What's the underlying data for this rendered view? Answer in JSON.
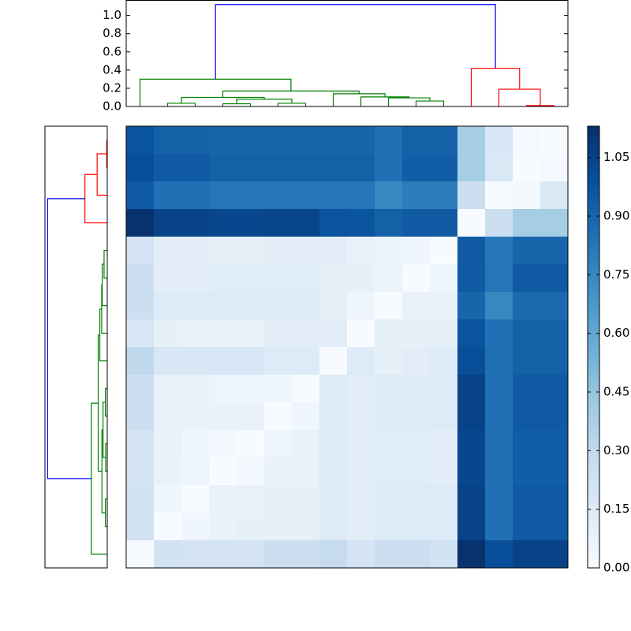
{
  "chart_data": {
    "type": "clustermap",
    "colormap": "Blues",
    "matrix": [
      [
        0.98,
        0.92,
        0.92,
        0.9,
        0.9,
        0.9,
        0.9,
        0.9,
        0.9,
        0.85,
        0.92,
        0.92,
        0.4,
        0.18,
        0.02,
        0
      ],
      [
        1.0,
        0.95,
        0.95,
        0.92,
        0.92,
        0.92,
        0.92,
        0.92,
        0.92,
        0.85,
        0.93,
        0.93,
        0.4,
        0.17,
        0,
        0.02
      ],
      [
        0.95,
        0.85,
        0.85,
        0.83,
        0.82,
        0.82,
        0.82,
        0.83,
        0.83,
        0.75,
        0.8,
        0.8,
        0.25,
        0,
        0.03,
        0.17
      ],
      [
        1.12,
        1.05,
        1.05,
        1.03,
        1.03,
        1.04,
        1.04,
        0.98,
        0.97,
        0.92,
        0.95,
        0.95,
        0,
        0.25,
        0.4,
        0.4
      ],
      [
        0.2,
        0.12,
        0.12,
        0.1,
        0.1,
        0.12,
        0.12,
        0.12,
        0.08,
        0.07,
        0.05,
        0,
        0.95,
        0.82,
        0.9,
        0.9
      ],
      [
        0.25,
        0.12,
        0.12,
        0.13,
        0.13,
        0.13,
        0.13,
        0.1,
        0.1,
        0.07,
        0,
        0.05,
        0.95,
        0.83,
        0.95,
        0.95
      ],
      [
        0.25,
        0.15,
        0.15,
        0.15,
        0.15,
        0.15,
        0.15,
        0.1,
        0.05,
        0,
        0.08,
        0.08,
        0.9,
        0.75,
        0.88,
        0.88
      ],
      [
        0.18,
        0.1,
        0.08,
        0.08,
        0.08,
        0.12,
        0.12,
        0.12,
        0,
        0.1,
        0.1,
        0.1,
        0.98,
        0.85,
        0.92,
        0.92
      ],
      [
        0.3,
        0.18,
        0.18,
        0.18,
        0.18,
        0.15,
        0.15,
        0,
        0.15,
        0.1,
        0.12,
        0.15,
        1.0,
        0.85,
        0.92,
        0.92
      ],
      [
        0.25,
        0.08,
        0.08,
        0.06,
        0.06,
        0.04,
        0,
        0.15,
        0.12,
        0.15,
        0.15,
        0.15,
        1.05,
        0.85,
        0.95,
        0.95
      ],
      [
        0.25,
        0.08,
        0.08,
        0.08,
        0.08,
        0,
        0.04,
        0.15,
        0.12,
        0.15,
        0.15,
        0.15,
        1.05,
        0.85,
        0.95,
        0.95
      ],
      [
        0.2,
        0.08,
        0.05,
        0.03,
        0,
        0.06,
        0.08,
        0.15,
        0.12,
        0.13,
        0.13,
        0.12,
        1.03,
        0.85,
        0.93,
        0.93
      ],
      [
        0.2,
        0.08,
        0.06,
        0,
        0.03,
        0.08,
        0.08,
        0.15,
        0.12,
        0.13,
        0.13,
        0.12,
        1.03,
        0.85,
        0.93,
        0.93
      ],
      [
        0.22,
        0.04,
        0,
        0.08,
        0.08,
        0.1,
        0.1,
        0.15,
        0.12,
        0.15,
        0.15,
        0.15,
        1.05,
        0.85,
        0.95,
        0.95
      ],
      [
        0.22,
        0,
        0.04,
        0.08,
        0.1,
        0.1,
        0.1,
        0.15,
        0.12,
        0.15,
        0.15,
        0.15,
        1.05,
        0.85,
        0.95,
        0.95
      ],
      [
        0,
        0.22,
        0.2,
        0.2,
        0.2,
        0.25,
        0.25,
        0.28,
        0.2,
        0.25,
        0.25,
        0.22,
        1.12,
        1.0,
        1.05,
        1.05
      ]
    ],
    "clim": [
      0,
      1.13
    ],
    "colorbar_ticks": [
      {
        "value": 0,
        "label": "0.00"
      },
      {
        "value": 0.15,
        "label": "0.15"
      },
      {
        "value": 0.3,
        "label": "0.30"
      },
      {
        "value": 0.45,
        "label": "0.45"
      },
      {
        "value": 0.6,
        "label": "0.60"
      },
      {
        "value": 0.75,
        "label": "0.75"
      },
      {
        "value": 0.9,
        "label": "0.90"
      },
      {
        "value": 1.05,
        "label": "1.05"
      }
    ],
    "dendrogram": {
      "xlim": [
        0,
        160
      ],
      "ylim": [
        0,
        1.17
      ],
      "yticks": [
        {
          "value": 0,
          "label": "0.0"
        },
        {
          "value": 0.2,
          "label": "0.2"
        },
        {
          "value": 0.4,
          "label": "0.4"
        },
        {
          "value": 0.6,
          "label": "0.6"
        },
        {
          "value": 0.8,
          "label": "0.8"
        },
        {
          "value": 1.0,
          "label": "1.0"
        }
      ],
      "links": [
        {
          "x": [
            15,
            15,
            25,
            25
          ],
          "y": [
            0,
            0.035,
            0.035,
            0
          ],
          "color": "#008000"
        },
        {
          "x": [
            35,
            35,
            45,
            45
          ],
          "y": [
            0,
            0.03,
            0.03,
            0
          ],
          "color": "#008000"
        },
        {
          "x": [
            55,
            55,
            65,
            65
          ],
          "y": [
            0,
            0.035,
            0.035,
            0
          ],
          "color": "#008000"
        },
        {
          "x": [
            40,
            40,
            60,
            60
          ],
          "y": [
            0.03,
            0.08,
            0.08,
            0.035
          ],
          "color": "#008000"
        },
        {
          "x": [
            20,
            20,
            50,
            50
          ],
          "y": [
            0.035,
            0.1,
            0.1,
            0.08
          ],
          "color": "#008000"
        },
        {
          "x": [
            105,
            105,
            115,
            115
          ],
          "y": [
            0,
            0.06,
            0.06,
            0
          ],
          "color": "#008000"
        },
        {
          "x": [
            95,
            95,
            110,
            110
          ],
          "y": [
            0,
            0.095,
            0.095,
            0.06
          ],
          "color": "#008000"
        },
        {
          "x": [
            85,
            85,
            102.5,
            102.5
          ],
          "y": [
            0,
            0.105,
            0.105,
            0.095
          ],
          "color": "#008000"
        },
        {
          "x": [
            75,
            75,
            93.75,
            93.75
          ],
          "y": [
            0,
            0.14,
            0.14,
            0.105
          ],
          "color": "#008000"
        },
        {
          "x": [
            35,
            35,
            84.375,
            84.375
          ],
          "y": [
            0.1,
            0.17,
            0.17,
            0.14
          ],
          "color": "#008000"
        },
        {
          "x": [
            5,
            5,
            59.6875,
            59.6875
          ],
          "y": [
            0,
            0.3,
            0.3,
            0.17
          ],
          "color": "#008000"
        },
        {
          "x": [
            145,
            145,
            155,
            155
          ],
          "y": [
            0,
            0.01,
            0.01,
            0
          ],
          "color": "#ff0000"
        },
        {
          "x": [
            135,
            135,
            150,
            150
          ],
          "y": [
            0,
            0.19,
            0.19,
            0.01
          ],
          "color": "#ff0000"
        },
        {
          "x": [
            125,
            125,
            142.5,
            142.5
          ],
          "y": [
            0,
            0.42,
            0.42,
            0.19
          ],
          "color": "#ff0000"
        },
        {
          "x": [
            32.34375,
            32.34375,
            133.75,
            133.75
          ],
          "y": [
            0.3,
            1.12,
            1.12,
            0.42
          ],
          "color": "#0000ff"
        }
      ]
    }
  }
}
